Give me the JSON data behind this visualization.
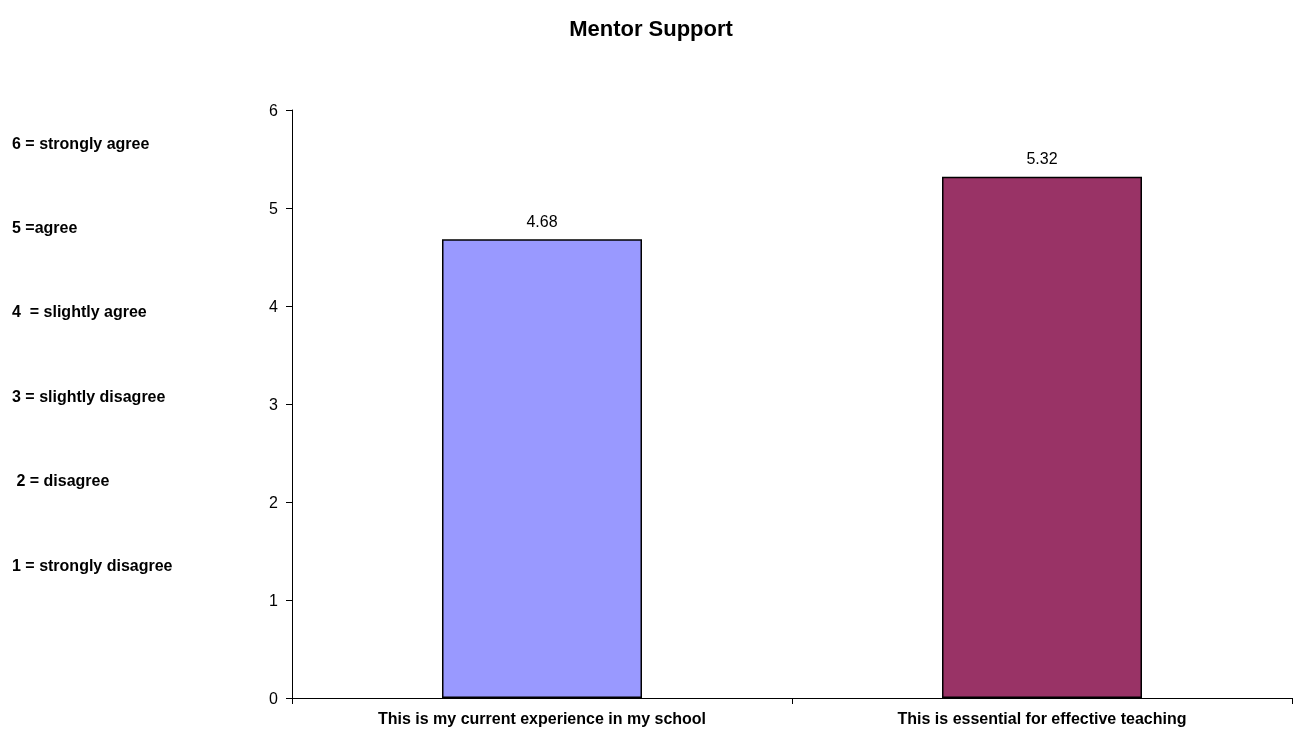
{
  "chart_data": {
    "type": "bar",
    "title": "Mentor Support",
    "categories": [
      "This is my current experience in my school",
      "This is essential for effective teaching"
    ],
    "values": [
      4.68,
      5.32
    ],
    "colors": [
      "#9999ff",
      "#993366"
    ],
    "ylim": [
      0,
      6
    ],
    "yticks": [
      0,
      1,
      2,
      3,
      4,
      5,
      6
    ],
    "grid": false,
    "data_labels": true,
    "annotations": [
      "6 = strongly agree",
      "5 =agree",
      "4  = slightly agree",
      "3 = slightly disagree",
      " 2 = disagree",
      "1 = strongly disagree"
    ]
  }
}
